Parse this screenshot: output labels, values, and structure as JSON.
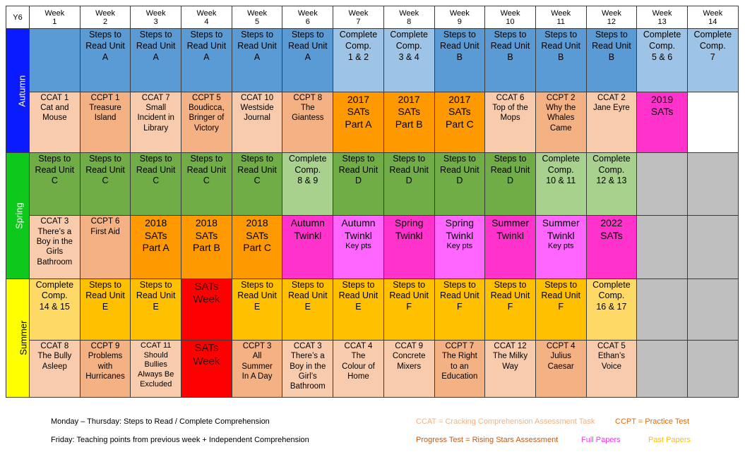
{
  "corner_label": "Y6",
  "weeks": [
    [
      "Week",
      "1"
    ],
    [
      "Week",
      "2"
    ],
    [
      "Week",
      "3"
    ],
    [
      "Week",
      "4"
    ],
    [
      "Week",
      "5"
    ],
    [
      "Week",
      "6"
    ],
    [
      "Week",
      "7"
    ],
    [
      "Week",
      "8"
    ],
    [
      "Week",
      "9"
    ],
    [
      "Week",
      "10"
    ],
    [
      "Week",
      "11"
    ],
    [
      "Week",
      "12"
    ],
    [
      "Week",
      "13"
    ],
    [
      "Week",
      "14"
    ]
  ],
  "colors": {
    "autumn": "#0a1cff",
    "spring": "#0fc81c",
    "summer": "#ffff00",
    "mid_blue": "#5b9bd5",
    "light_blue": "#9dc3e6",
    "green": "#70ad47",
    "light_green": "#a9d18e",
    "amber": "#ffc000",
    "light_amber": "#ffd966",
    "peach": "#f8cbad",
    "salmon": "#f4b183",
    "orange": "#ff9900",
    "magenta": "#ff33cc",
    "pink": "#ff66ff",
    "red": "#ff0000",
    "grey": "#bfbfbf",
    "white": "#ffffff"
  },
  "rows": [
    {
      "term": "Autumn",
      "cells": [
        {
          "lines": [],
          "bg": "mid_blue",
          "size": "f12"
        },
        {
          "lines": [
            "Steps to",
            "Read Unit",
            "A"
          ],
          "bg": "mid_blue",
          "size": "f12"
        },
        {
          "lines": [
            "Steps to",
            "Read Unit",
            "A"
          ],
          "bg": "mid_blue",
          "size": "f12"
        },
        {
          "lines": [
            "Steps to",
            "Read Unit",
            "A"
          ],
          "bg": "mid_blue",
          "size": "f12"
        },
        {
          "lines": [
            "Steps to",
            "Read Unit",
            "A"
          ],
          "bg": "mid_blue",
          "size": "f12"
        },
        {
          "lines": [
            "Steps to",
            "Read Unit",
            "A"
          ],
          "bg": "mid_blue",
          "size": "f12"
        },
        {
          "lines": [
            "Complete",
            "Comp.",
            "1 & 2"
          ],
          "bg": "light_blue",
          "size": "f12"
        },
        {
          "lines": [
            "Complete",
            "Comp.",
            "3 & 4"
          ],
          "bg": "light_blue",
          "size": "f12"
        },
        {
          "lines": [
            "Steps to",
            "Read Unit",
            "B"
          ],
          "bg": "mid_blue",
          "size": "f12"
        },
        {
          "lines": [
            "Steps to",
            "Read Unit",
            "B"
          ],
          "bg": "mid_blue",
          "size": "f12"
        },
        {
          "lines": [
            "Steps to",
            "Read Unit",
            "B"
          ],
          "bg": "mid_blue",
          "size": "f12"
        },
        {
          "lines": [
            "Steps to",
            "Read Unit",
            "B"
          ],
          "bg": "mid_blue",
          "size": "f12"
        },
        {
          "lines": [
            "Complete",
            "Comp.",
            "5 & 6"
          ],
          "bg": "light_blue",
          "size": "f12"
        },
        {
          "lines": [
            "Complete",
            "Comp.",
            "7"
          ],
          "bg": "light_blue",
          "size": "f12"
        }
      ]
    },
    {
      "term": "",
      "cells": [
        {
          "lines": [
            "CCAT 1",
            "Cat and",
            "Mouse"
          ],
          "bg": "peach",
          "size": "f11"
        },
        {
          "lines": [
            "CCPT 1",
            "Treasure",
            "Island"
          ],
          "bg": "salmon",
          "size": "f11"
        },
        {
          "lines": [
            "CCAT 7",
            "Small",
            "Incident in",
            "Library"
          ],
          "bg": "peach",
          "size": "f11"
        },
        {
          "lines": [
            "CCPT 5",
            "Boudicca,",
            "Bringer of",
            "Victory"
          ],
          "bg": "salmon",
          "size": "f11"
        },
        {
          "lines": [
            "CCAT 10",
            "Westside",
            "Journal"
          ],
          "bg": "peach",
          "size": "f11"
        },
        {
          "lines": [
            "CCPT 8",
            "The",
            "Giantess"
          ],
          "bg": "salmon",
          "size": "f11"
        },
        {
          "lines": [
            "2017",
            "SATs",
            "Part A"
          ],
          "bg": "orange",
          "size": "f14"
        },
        {
          "lines": [
            "2017",
            "SATs",
            "Part B"
          ],
          "bg": "orange",
          "size": "f14"
        },
        {
          "lines": [
            "2017",
            "SATs",
            "Part C"
          ],
          "bg": "orange",
          "size": "f14"
        },
        {
          "lines": [
            "CCAT 6",
            "Top of the",
            "Mops"
          ],
          "bg": "peach",
          "size": "f11"
        },
        {
          "lines": [
            "CCPT 2",
            "Why the",
            "Whales",
            "Came"
          ],
          "bg": "salmon",
          "size": "f11"
        },
        {
          "lines": [
            "CCAT 2",
            "Jane Eyre"
          ],
          "bg": "peach",
          "size": "f11"
        },
        {
          "lines": [
            "2019",
            "SATs"
          ],
          "bg": "magenta",
          "size": "f14"
        },
        {
          "lines": [],
          "bg": "white",
          "size": "f11"
        }
      ]
    },
    {
      "term": "Spring",
      "cells": [
        {
          "lines": [
            "Steps to",
            "Read Unit",
            "C"
          ],
          "bg": "green",
          "size": "f12"
        },
        {
          "lines": [
            "Steps to",
            "Read Unit",
            "C"
          ],
          "bg": "green",
          "size": "f12"
        },
        {
          "lines": [
            "Steps to",
            "Read Unit",
            "C"
          ],
          "bg": "green",
          "size": "f12"
        },
        {
          "lines": [
            "Steps to",
            "Read Unit",
            "C"
          ],
          "bg": "green",
          "size": "f12"
        },
        {
          "lines": [
            "Steps to",
            "Read Unit",
            "C"
          ],
          "bg": "green",
          "size": "f12"
        },
        {
          "lines": [
            "Complete",
            "Comp.",
            "8 & 9"
          ],
          "bg": "light_green",
          "size": "f12"
        },
        {
          "lines": [
            "Steps to",
            "Read Unit",
            "D"
          ],
          "bg": "green",
          "size": "f12"
        },
        {
          "lines": [
            "Steps to",
            "Read Unit",
            "D"
          ],
          "bg": "green",
          "size": "f12"
        },
        {
          "lines": [
            "Steps to",
            "Read Unit",
            "D"
          ],
          "bg": "green",
          "size": "f12"
        },
        {
          "lines": [
            "Steps to",
            "Read Unit",
            "D"
          ],
          "bg": "green",
          "size": "f12"
        },
        {
          "lines": [
            "Complete",
            "Comp.",
            "10 & 11"
          ],
          "bg": "light_green",
          "size": "f12"
        },
        {
          "lines": [
            "Complete",
            "Comp.",
            "12 & 13"
          ],
          "bg": "light_green",
          "size": "f12"
        },
        {
          "lines": [],
          "bg": "grey",
          "size": "f12"
        },
        {
          "lines": [],
          "bg": "grey",
          "size": "f12"
        }
      ]
    },
    {
      "term": "",
      "cells": [
        {
          "lines": [
            "CCAT 3",
            "There’s a",
            "Boy in the",
            "Girls",
            "Bathroom"
          ],
          "bg": "peach",
          "size": "f11"
        },
        {
          "lines": [
            "CCPT 6",
            "First Aid"
          ],
          "bg": "salmon",
          "size": "f11"
        },
        {
          "lines": [
            "2018",
            "SATs",
            "Part A"
          ],
          "bg": "orange",
          "size": "f14"
        },
        {
          "lines": [
            "2018",
            "SATs",
            "Part B"
          ],
          "bg": "orange",
          "size": "f14"
        },
        {
          "lines": [
            "2018",
            "SATs",
            "Part C"
          ],
          "bg": "orange",
          "size": "f14"
        },
        {
          "lines": [
            "Autumn",
            "Twinkl"
          ],
          "bg": "magenta",
          "size": "f14"
        },
        {
          "lines": [
            "Autumn",
            "Twinkl"
          ],
          "sub": "Key pts",
          "bg": "pink",
          "size": "f14"
        },
        {
          "lines": [
            "Spring",
            "Twinkl"
          ],
          "bg": "magenta",
          "size": "f14"
        },
        {
          "lines": [
            "Spring",
            "Twinkl"
          ],
          "sub": "Key pts",
          "bg": "pink",
          "size": "f14"
        },
        {
          "lines": [
            "Summer",
            "Twinkl"
          ],
          "bg": "magenta",
          "size": "f14"
        },
        {
          "lines": [
            "Summer",
            "Twinkl"
          ],
          "sub": "Key pts",
          "bg": "pink",
          "size": "f14"
        },
        {
          "lines": [
            "2022",
            "SATs"
          ],
          "bg": "magenta",
          "size": "f14"
        },
        {
          "lines": [],
          "bg": "grey",
          "size": "f11"
        },
        {
          "lines": [],
          "bg": "grey",
          "size": "f11"
        }
      ]
    },
    {
      "term": "Summer",
      "cells": [
        {
          "lines": [
            "Complete",
            "Comp.",
            "14 & 15"
          ],
          "bg": "light_amber",
          "size": "f12"
        },
        {
          "lines": [
            "Steps to",
            "Read Unit",
            "E"
          ],
          "bg": "amber",
          "size": "f12"
        },
        {
          "lines": [
            "Steps to",
            "Read Unit",
            "E"
          ],
          "bg": "amber",
          "size": "f12"
        },
        {
          "lines": [
            "SATs",
            "Week"
          ],
          "bg": "red",
          "size": "f14 red"
        },
        {
          "lines": [
            "Steps to",
            "Read Unit",
            "E"
          ],
          "bg": "amber",
          "size": "f12"
        },
        {
          "lines": [
            "Steps to",
            "Read Unit",
            "E"
          ],
          "bg": "amber",
          "size": "f12"
        },
        {
          "lines": [
            "Steps to",
            "Read Unit",
            "E"
          ],
          "bg": "amber",
          "size": "f12"
        },
        {
          "lines": [
            "Steps to",
            "Read Unit",
            "F"
          ],
          "bg": "amber",
          "size": "f12"
        },
        {
          "lines": [
            "Steps to",
            "Read Unit",
            "F"
          ],
          "bg": "amber",
          "size": "f12"
        },
        {
          "lines": [
            "Steps to",
            "Read Unit",
            "F"
          ],
          "bg": "amber",
          "size": "f12"
        },
        {
          "lines": [
            "Steps to",
            "Read Unit",
            "F"
          ],
          "bg": "amber",
          "size": "f12"
        },
        {
          "lines": [
            "Complete",
            "Comp.",
            "16 & 17"
          ],
          "bg": "light_amber",
          "size": "f12"
        },
        {
          "lines": [],
          "bg": "grey",
          "size": "f12"
        },
        {
          "lines": [],
          "bg": "grey",
          "size": "f12"
        }
      ]
    },
    {
      "term": "",
      "cells": [
        {
          "lines": [
            "CCAT 8",
            "The Bully",
            "Asleep"
          ],
          "bg": "peach",
          "size": "f11"
        },
        {
          "lines": [
            "CCPT  9",
            "Problems",
            "with",
            "Hurricanes"
          ],
          "bg": "salmon",
          "size": "f11"
        },
        {
          "lines": [
            "CCAT 11",
            "Should",
            "Bullies",
            "Always Be",
            "Excluded"
          ],
          "bg": "peach",
          "size": "s11"
        },
        {
          "lines": [
            "SATs",
            "Week"
          ],
          "bg": "red",
          "size": "f14 red"
        },
        {
          "lines": [
            "CCPT 3",
            "All",
            "Summer",
            "In A Day"
          ],
          "bg": "salmon",
          "size": "f11"
        },
        {
          "lines": [
            "CCAT 3",
            "There’s a",
            "Boy in the",
            "Girl’s",
            "Bathroom"
          ],
          "bg": "peach",
          "size": "f11"
        },
        {
          "lines": [
            "CCAT 4",
            "The",
            "Colour of",
            "Home"
          ],
          "bg": "peach",
          "size": "f11"
        },
        {
          "lines": [
            "CCAT 9",
            "Concrete",
            "Mixers"
          ],
          "bg": "peach",
          "size": "f11"
        },
        {
          "lines": [
            "CCPT 7",
            "The Right",
            "to an",
            "Education"
          ],
          "bg": "salmon",
          "size": "f11"
        },
        {
          "lines": [
            "CCAT 12",
            "The Milky",
            "Way"
          ],
          "bg": "peach",
          "size": "f11"
        },
        {
          "lines": [
            "CCPT 4",
            "Julius",
            "Caesar"
          ],
          "bg": "salmon",
          "size": "f11"
        },
        {
          "lines": [
            "CCAT 5",
            "Ethan’s",
            "Voice"
          ],
          "bg": "peach",
          "size": "f11"
        },
        {
          "lines": [],
          "bg": "grey",
          "size": "f11"
        },
        {
          "lines": [],
          "bg": "grey",
          "size": "f11"
        }
      ]
    }
  ],
  "legend": {
    "line1": "Monday – Thursday: Steps to Read / Complete Comprehension",
    "line2": "Friday: Teaching points from previous week + Independent Comprehension",
    "ccat": "CCAT = Cracking Comprehension Assessment Task",
    "ccpt": "CCPT = Practice Test",
    "progress": "Progress Test = Rising Stars Assessment",
    "full": "Full Papers",
    "past": "Past Papers",
    "ccat_color": "#f4b183",
    "ccpt_color": "#e36c09",
    "progress_color": "#c55a11",
    "full_color": "#ff33ff",
    "past_color": "#ffc000"
  }
}
